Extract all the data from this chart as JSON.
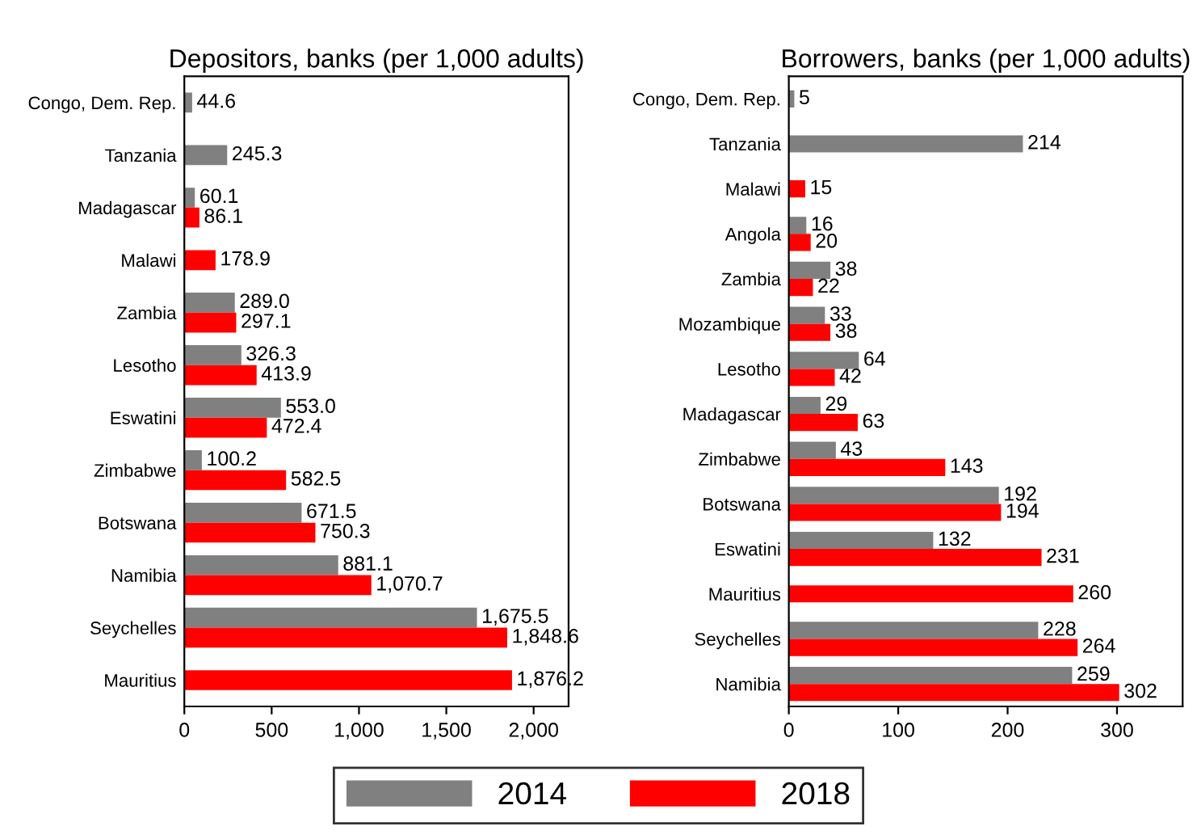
{
  "chart_data": [
    {
      "type": "bar",
      "orientation": "horizontal",
      "title": "Depositors, banks (per 1,000 adults)",
      "categories": [
        "Congo, Dem. Rep.",
        "Tanzania",
        "Madagascar",
        "Malawi",
        "Zambia",
        "Lesotho",
        "Eswatini",
        "Zimbabwe",
        "Botswana",
        "Namibia",
        "Seychelles",
        "Mauritius"
      ],
      "series": [
        {
          "name": "2014",
          "color": "#808080",
          "values": [
            44.6,
            245.3,
            60.1,
            null,
            289.0,
            326.3,
            553.0,
            100.2,
            671.5,
            881.1,
            1675.5,
            null
          ],
          "value_labels": [
            "44.6",
            "245.3",
            "60.1",
            null,
            "289.0",
            "326.3",
            "553.0",
            "100.2",
            "671.5",
            "881.1",
            "1,675.5",
            null
          ]
        },
        {
          "name": "2018",
          "color": "#ff0000",
          "values": [
            null,
            null,
            86.1,
            178.9,
            297.1,
            413.9,
            472.4,
            582.5,
            750.3,
            1070.7,
            1848.6,
            1876.2
          ],
          "value_labels": [
            null,
            null,
            "86.1",
            "178.9",
            "297.1",
            "413.9",
            "472.4",
            "582.5",
            "750.3",
            "1,070.7",
            "1,848.6",
            "1,876.2"
          ]
        }
      ],
      "xlim": [
        0,
        2200
      ],
      "xticks": [
        0,
        500,
        {
          "value": 1000,
          "label": "1,000"
        },
        {
          "value": 1500,
          "label": "1,500"
        },
        {
          "value": 2000,
          "label": "2,000"
        }
      ],
      "grid": false,
      "legend": "bottom"
    },
    {
      "type": "bar",
      "orientation": "horizontal",
      "title": "Borrowers, banks (per 1,000 adults)",
      "categories": [
        "Congo, Dem. Rep.",
        "Tanzania",
        "Malawi",
        "Angola",
        "Zambia",
        "Mozambique",
        "Lesotho",
        "Madagascar",
        "Zimbabwe",
        "Botswana",
        "Eswatini",
        "Mauritius",
        "Seychelles",
        "Namibia"
      ],
      "series": [
        {
          "color": "#808080",
          "values": [
            5,
            214,
            null,
            16,
            38,
            33,
            64,
            29,
            43,
            192,
            132,
            null,
            228,
            259
          ],
          "value_labels": [
            "5",
            "214",
            null,
            "16",
            "38",
            "33",
            "64",
            "29",
            "43",
            "192",
            "132",
            null,
            "228",
            "259"
          ]
        },
        {
          "color": "#ff0000",
          "values": [
            null,
            null,
            15,
            20,
            22,
            38,
            42,
            63,
            143,
            194,
            231,
            260,
            264,
            302
          ],
          "value_labels": [
            null,
            null,
            "15",
            "20",
            "22",
            "38",
            "42",
            "63",
            "143",
            "194",
            "231",
            "260",
            "264",
            "302"
          ]
        }
      ],
      "xlim": [
        0,
        360
      ],
      "xticks": [
        0,
        100,
        200,
        300
      ],
      "grid": false
    }
  ]
}
